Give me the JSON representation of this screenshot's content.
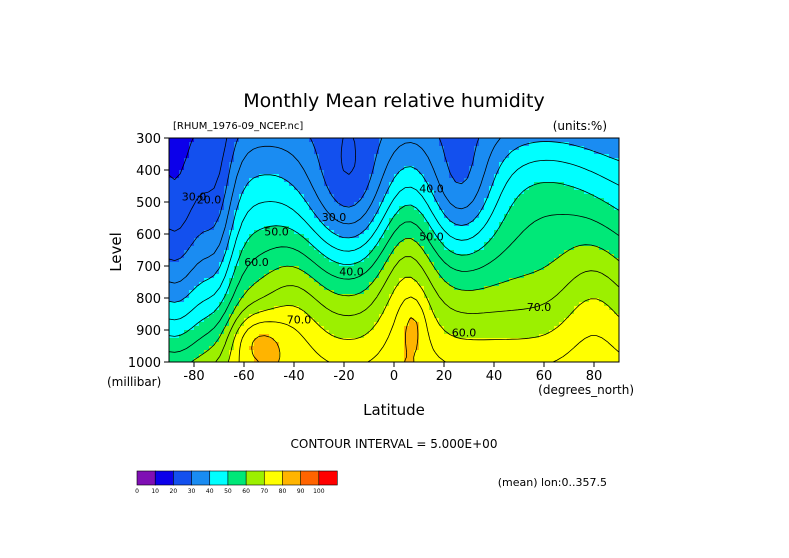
{
  "figure": {
    "title": "Monthly Mean relative humidity",
    "file_label": "[RHUM_1976-09_NCEP.nc]",
    "units_label": "(units:%)",
    "contour_interval": "CONTOUR INTERVAL = 5.000E+00",
    "mean_note": "(mean) lon:0..357.5",
    "y_unit_label": "(millibar)",
    "x_unit_label": "(degrees_north)"
  },
  "chart_data": {
    "type": "heatmap",
    "subtype": "filled-contour",
    "title": "Monthly Mean relative humidity",
    "xlabel": "Latitude",
    "ylabel": "Level",
    "x_unit": "degrees_north",
    "y_unit": "millibar",
    "xlim": [
      -90,
      90
    ],
    "ylim": [
      1000,
      300
    ],
    "x_ticks": [
      -80,
      -60,
      -40,
      -20,
      0,
      20,
      40,
      60,
      80
    ],
    "x_tick_labels": [
      "-80",
      "-60",
      "-40",
      "-20",
      "0",
      "20",
      "40",
      "60",
      "80"
    ],
    "y_ticks": [
      300,
      400,
      500,
      600,
      700,
      800,
      900,
      1000
    ],
    "y_tick_labels": [
      "300",
      "400",
      "500",
      "600",
      "700",
      "800",
      "900",
      "1000"
    ],
    "contour_interval": 5,
    "contour_labels": [
      {
        "text": "30.0",
        "lat": -80,
        "p": 495
      },
      {
        "text": "20.0",
        "lat": -74,
        "p": 505
      },
      {
        "text": "50.0",
        "lat": -47,
        "p": 605
      },
      {
        "text": "60.0",
        "lat": -55,
        "p": 700
      },
      {
        "text": "70.0",
        "lat": -38,
        "p": 880
      },
      {
        "text": "30.0",
        "lat": -24,
        "p": 560
      },
      {
        "text": "40.0",
        "lat": -17,
        "p": 730
      },
      {
        "text": "40.0",
        "lat": 15,
        "p": 470
      },
      {
        "text": "50.0",
        "lat": 15,
        "p": 620
      },
      {
        "text": "60.0",
        "lat": 28,
        "p": 920
      },
      {
        "text": "70.0",
        "lat": 58,
        "p": 840
      }
    ],
    "colorbar": {
      "levels": [
        0,
        10,
        20,
        30,
        40,
        50,
        60,
        70,
        80,
        90,
        100
      ],
      "labels": [
        "0",
        "10",
        "20",
        "30",
        "40",
        "50",
        "60",
        "70",
        "80",
        "90",
        "100"
      ],
      "colors": [
        "#7f0fb4",
        "#0c00ea",
        "#1350ee",
        "#1a8cf2",
        "#00ffff",
        "#00e878",
        "#9cf000",
        "#ffff00",
        "#ffb400",
        "#ff6400",
        "#ff0000"
      ]
    }
  }
}
